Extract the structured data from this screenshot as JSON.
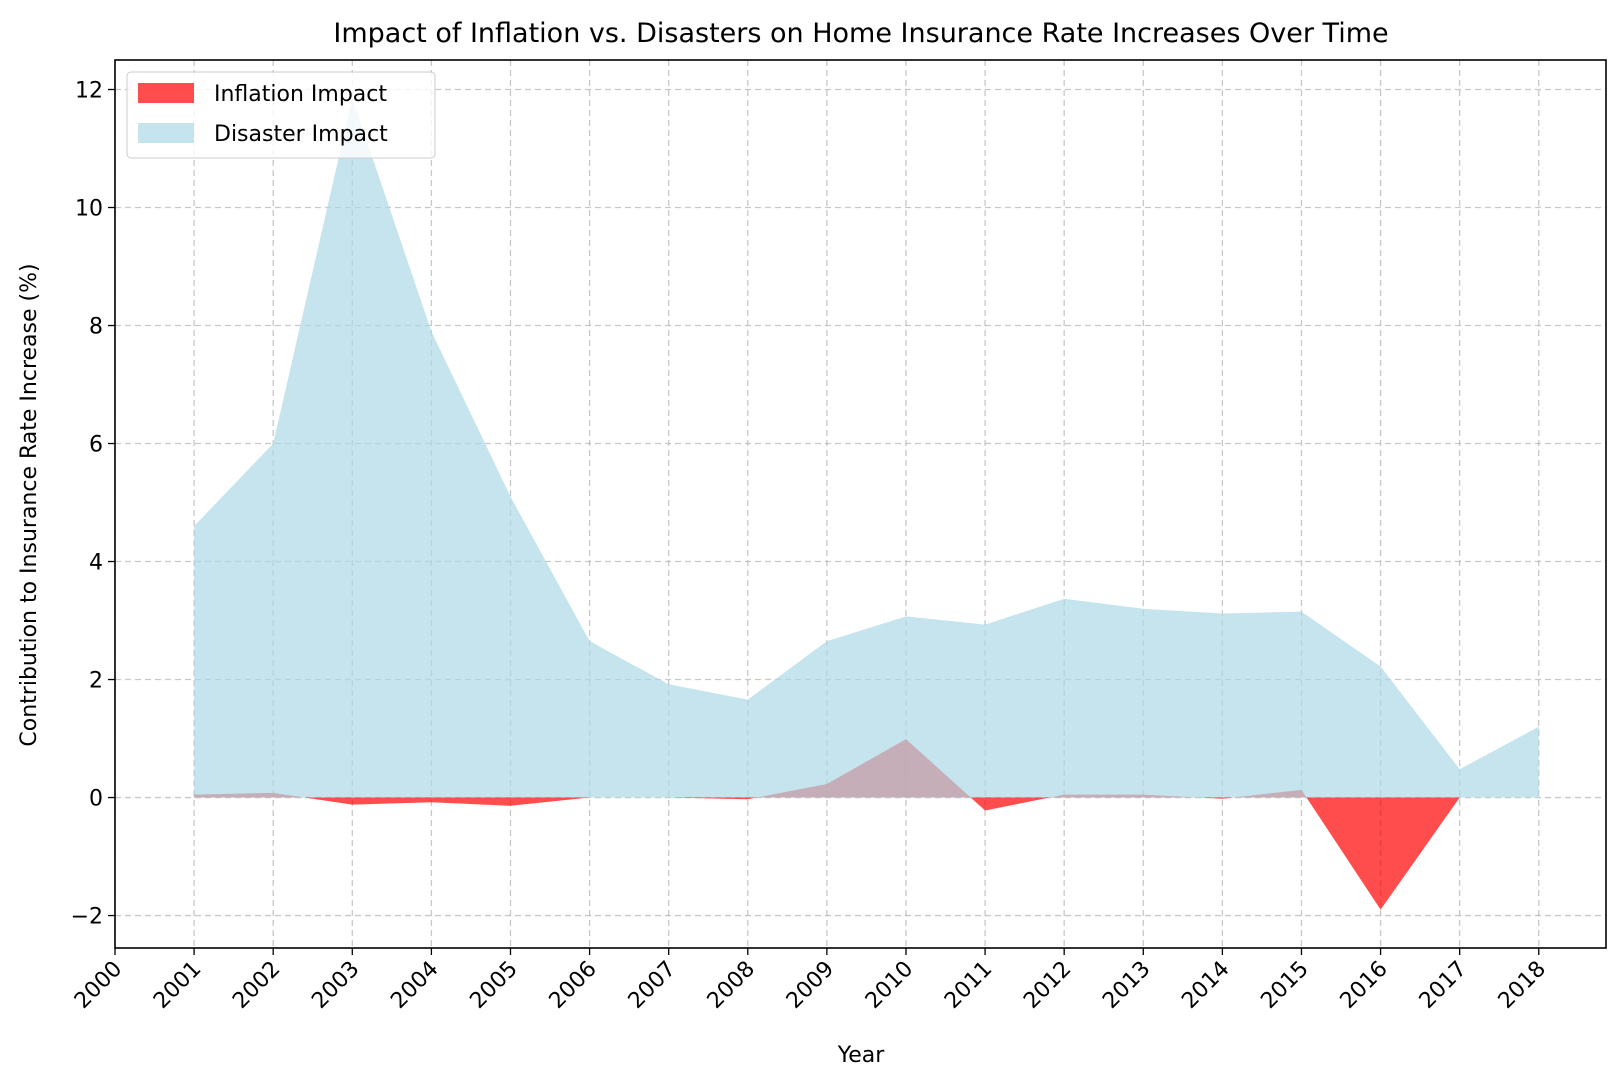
{
  "colors": {
    "inflation": "#ff0000",
    "disaster": "#add8e6",
    "grid": "#b0b0b0",
    "axis": "#000000"
  },
  "chart_data": {
    "type": "area",
    "title": "Impact of Inflation vs. Disasters on Home Insurance Rate Increases Over Time",
    "xlabel": "Year",
    "ylabel": "Contribution to Insurance Rate Increase (%)",
    "x_ticks": [
      "2000",
      "2001",
      "2002",
      "2003",
      "2004",
      "2005",
      "2006",
      "2007",
      "2008",
      "2009",
      "2010",
      "2011",
      "2012",
      "2013",
      "2014",
      "2015",
      "2016",
      "2017",
      "2018"
    ],
    "y_ticks": [
      -2,
      0,
      2,
      4,
      6,
      8,
      10,
      12
    ],
    "y_tick_labels": [
      "−2",
      "0",
      "2",
      "4",
      "6",
      "8",
      "10",
      "12"
    ],
    "xlim": [
      2000,
      2018.85
    ],
    "ylim": [
      -2.55,
      12.5
    ],
    "grid": true,
    "legend_position": "top-left",
    "x": [
      2001,
      2002,
      2003,
      2004,
      2005,
      2006,
      2007,
      2008,
      2009,
      2010,
      2011,
      2012,
      2013,
      2014,
      2015,
      2016,
      2017,
      2018
    ],
    "series": [
      {
        "name": "Inflation Impact",
        "color": "#ff0000",
        "opacity": 0.7,
        "values": [
          0.05,
          0.08,
          -0.12,
          -0.08,
          -0.14,
          0.0,
          0.0,
          -0.03,
          0.23,
          0.99,
          -0.22,
          0.05,
          0.05,
          -0.02,
          0.13,
          -1.9,
          0.0,
          0.0
        ]
      },
      {
        "name": "Disaster Impact",
        "color": "#add8e6",
        "opacity": 0.7,
        "values": [
          4.6,
          6.0,
          11.85,
          7.9,
          5.1,
          2.65,
          1.92,
          1.66,
          2.65,
          3.07,
          2.93,
          3.37,
          3.2,
          3.12,
          3.15,
          2.22,
          0.48,
          1.2
        ]
      }
    ]
  }
}
